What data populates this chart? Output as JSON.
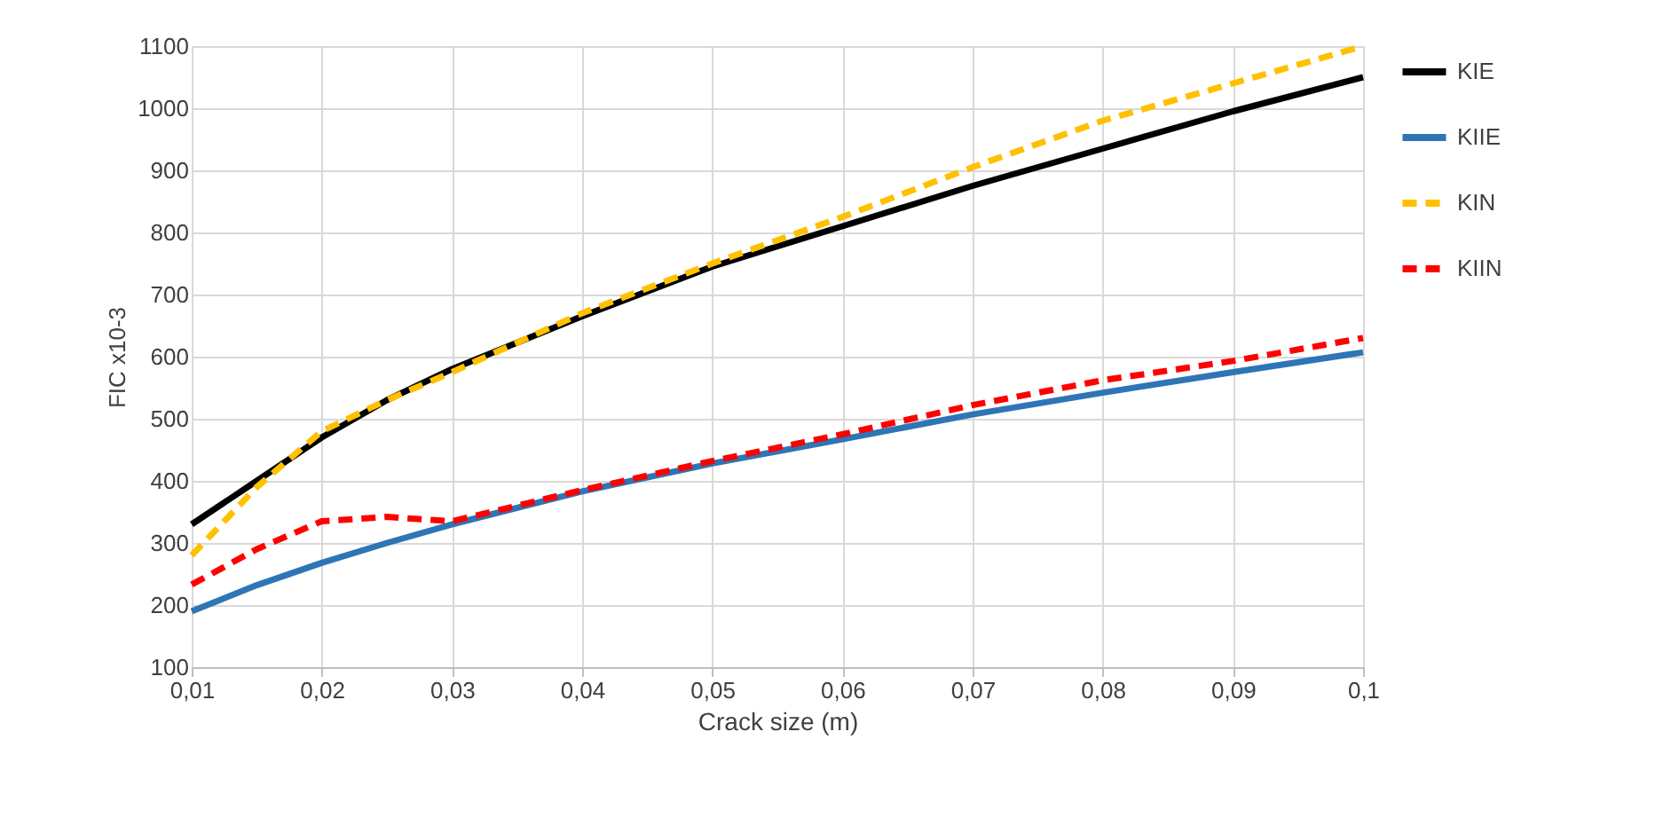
{
  "chart_data": {
    "type": "line",
    "xlabel": "Crack size (m)",
    "ylabel": "FIC x10-3",
    "x": [
      0.01,
      0.015,
      0.02,
      0.025,
      0.03,
      0.04,
      0.05,
      0.06,
      0.07,
      0.08,
      0.09,
      0.1
    ],
    "series": [
      {
        "name": "KIE",
        "color": "#000000",
        "line_style": "solid",
        "values": [
          330,
          400,
          470,
          530,
          580,
          665,
          745,
          810,
          875,
          935,
          995,
          1050
        ]
      },
      {
        "name": "KIIE",
        "color": "#2e75b6",
        "line_style": "solid",
        "values": [
          190,
          232,
          268,
          300,
          330,
          383,
          428,
          467,
          507,
          542,
          575,
          607
        ]
      },
      {
        "name": "KIN",
        "color": "#ffc000",
        "line_style": "dashed",
        "values": [
          280,
          390,
          480,
          530,
          575,
          670,
          750,
          825,
          905,
          980,
          1040,
          1100
        ]
      },
      {
        "name": "KIIN",
        "color": "#ff0000",
        "line_style": "dashed",
        "values": [
          233,
          290,
          335,
          342,
          335,
          385,
          432,
          475,
          522,
          562,
          593,
          630
        ]
      }
    ],
    "xlim": [
      0.01,
      0.1
    ],
    "xticks": [
      {
        "value": 0.01,
        "label": "0,01"
      },
      {
        "value": 0.02,
        "label": "0,02"
      },
      {
        "value": 0.03,
        "label": "0,03"
      },
      {
        "value": 0.04,
        "label": "0,04"
      },
      {
        "value": 0.05,
        "label": "0,05"
      },
      {
        "value": 0.06,
        "label": "0,06"
      },
      {
        "value": 0.07,
        "label": "0,07"
      },
      {
        "value": 0.08,
        "label": "0,08"
      },
      {
        "value": 0.09,
        "label": "0,09"
      },
      {
        "value": 0.1,
        "label": "0,1"
      }
    ],
    "ylim": [
      100,
      1100
    ],
    "yticks": [
      100,
      200,
      300,
      400,
      500,
      600,
      700,
      800,
      900,
      1000,
      1100
    ],
    "grid": true,
    "legend": "right",
    "marker": "none"
  }
}
